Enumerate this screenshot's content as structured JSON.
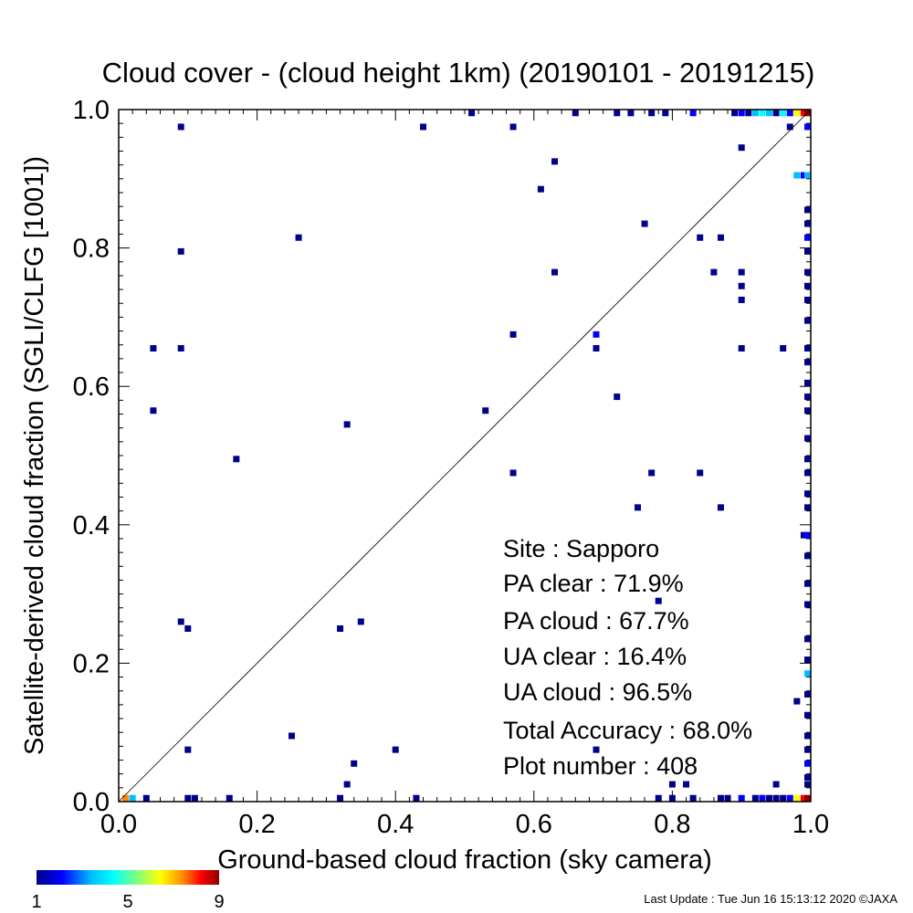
{
  "chart_data": {
    "type": "scatter",
    "title": "Cloud cover - (cloud height 1km)  (20190101 - 20191215)",
    "xlabel": "Ground-based cloud fraction (sky camera)",
    "ylabel": "Satellite-derived cloud fraction (SGLI/CLFG [1001])",
    "xlim": [
      0,
      1
    ],
    "ylim": [
      0,
      1
    ],
    "xticks": [
      "0.0",
      "0.2",
      "0.4",
      "0.6",
      "0.8",
      "1.0"
    ],
    "yticks": [
      "0.0",
      "0.2",
      "0.4",
      "0.6",
      "0.8",
      "1.0"
    ],
    "reference_line": "y = x",
    "color_scale": {
      "min_label": "1",
      "mid_label": "5",
      "max_label": "9",
      "colors": [
        "#00008b",
        "#0000ff",
        "#00bfff",
        "#00ffff",
        "#7fff7f",
        "#ffff00",
        "#ff8c00",
        "#ff0000",
        "#8b0000"
      ]
    },
    "points": [
      {
        "x": 0.09,
        "y": 0.975,
        "c": 1
      },
      {
        "x": 0.44,
        "y": 0.975,
        "c": 1
      },
      {
        "x": 0.57,
        "y": 0.975,
        "c": 1
      },
      {
        "x": 0.51,
        "y": 0.995,
        "c": 1
      },
      {
        "x": 0.66,
        "y": 0.995,
        "c": 1
      },
      {
        "x": 0.72,
        "y": 0.995,
        "c": 1
      },
      {
        "x": 0.74,
        "y": 0.995,
        "c": 1
      },
      {
        "x": 0.77,
        "y": 0.995,
        "c": 1
      },
      {
        "x": 0.79,
        "y": 0.995,
        "c": 1
      },
      {
        "x": 0.83,
        "y": 0.995,
        "c": 2
      },
      {
        "x": 0.89,
        "y": 0.995,
        "c": 1
      },
      {
        "x": 0.9,
        "y": 0.995,
        "c": 2
      },
      {
        "x": 0.91,
        "y": 0.995,
        "c": 1
      },
      {
        "x": 0.92,
        "y": 0.995,
        "c": 3
      },
      {
        "x": 0.93,
        "y": 0.995,
        "c": 4
      },
      {
        "x": 0.94,
        "y": 0.995,
        "c": 3
      },
      {
        "x": 0.95,
        "y": 0.995,
        "c": 1
      },
      {
        "x": 0.96,
        "y": 0.995,
        "c": 4
      },
      {
        "x": 0.97,
        "y": 0.995,
        "c": 2
      },
      {
        "x": 0.98,
        "y": 0.995,
        "c": 6
      },
      {
        "x": 0.99,
        "y": 0.995,
        "c": 8
      },
      {
        "x": 1.0,
        "y": 0.995,
        "c": 9
      },
      {
        "x": 0.97,
        "y": 0.975,
        "c": 1
      },
      {
        "x": 1.0,
        "y": 0.975,
        "c": 2
      },
      {
        "x": 0.9,
        "y": 0.945,
        "c": 1
      },
      {
        "x": 0.63,
        "y": 0.925,
        "c": 1
      },
      {
        "x": 0.98,
        "y": 0.905,
        "c": 3
      },
      {
        "x": 0.99,
        "y": 0.905,
        "c": 2
      },
      {
        "x": 1.0,
        "y": 0.905,
        "c": 3
      },
      {
        "x": 0.61,
        "y": 0.885,
        "c": 1
      },
      {
        "x": 1.0,
        "y": 0.855,
        "c": 1
      },
      {
        "x": 0.76,
        "y": 0.835,
        "c": 1
      },
      {
        "x": 1.0,
        "y": 0.835,
        "c": 1
      },
      {
        "x": 0.09,
        "y": 0.795,
        "c": 1
      },
      {
        "x": 0.26,
        "y": 0.815,
        "c": 1
      },
      {
        "x": 0.84,
        "y": 0.815,
        "c": 1
      },
      {
        "x": 0.87,
        "y": 0.815,
        "c": 1
      },
      {
        "x": 1.0,
        "y": 0.815,
        "c": 2
      },
      {
        "x": 1.0,
        "y": 0.795,
        "c": 1
      },
      {
        "x": 0.63,
        "y": 0.765,
        "c": 1
      },
      {
        "x": 0.86,
        "y": 0.765,
        "c": 1
      },
      {
        "x": 0.9,
        "y": 0.765,
        "c": 1
      },
      {
        "x": 1.0,
        "y": 0.765,
        "c": 1
      },
      {
        "x": 0.9,
        "y": 0.745,
        "c": 1
      },
      {
        "x": 1.0,
        "y": 0.745,
        "c": 1
      },
      {
        "x": 0.9,
        "y": 0.725,
        "c": 1
      },
      {
        "x": 1.0,
        "y": 0.725,
        "c": 1
      },
      {
        "x": 1.0,
        "y": 0.695,
        "c": 1
      },
      {
        "x": 0.57,
        "y": 0.675,
        "c": 1
      },
      {
        "x": 0.69,
        "y": 0.675,
        "c": 2
      },
      {
        "x": 0.05,
        "y": 0.655,
        "c": 1
      },
      {
        "x": 0.09,
        "y": 0.655,
        "c": 1
      },
      {
        "x": 0.69,
        "y": 0.655,
        "c": 1
      },
      {
        "x": 0.9,
        "y": 0.655,
        "c": 1
      },
      {
        "x": 0.96,
        "y": 0.655,
        "c": 1
      },
      {
        "x": 1.0,
        "y": 0.655,
        "c": 1
      },
      {
        "x": 1.0,
        "y": 0.635,
        "c": 1
      },
      {
        "x": 1.0,
        "y": 0.605,
        "c": 1
      },
      {
        "x": 0.72,
        "y": 0.585,
        "c": 1
      },
      {
        "x": 1.0,
        "y": 0.585,
        "c": 1
      },
      {
        "x": 0.05,
        "y": 0.565,
        "c": 1
      },
      {
        "x": 0.53,
        "y": 0.565,
        "c": 1
      },
      {
        "x": 1.0,
        "y": 0.565,
        "c": 1
      },
      {
        "x": 0.33,
        "y": 0.545,
        "c": 1
      },
      {
        "x": 1.0,
        "y": 0.525,
        "c": 1
      },
      {
        "x": 0.17,
        "y": 0.495,
        "c": 1
      },
      {
        "x": 1.0,
        "y": 0.495,
        "c": 1
      },
      {
        "x": 0.57,
        "y": 0.475,
        "c": 1
      },
      {
        "x": 0.77,
        "y": 0.475,
        "c": 1
      },
      {
        "x": 0.84,
        "y": 0.475,
        "c": 1
      },
      {
        "x": 1.0,
        "y": 0.475,
        "c": 1
      },
      {
        "x": 1.0,
        "y": 0.445,
        "c": 1
      },
      {
        "x": 0.75,
        "y": 0.425,
        "c": 1
      },
      {
        "x": 0.87,
        "y": 0.425,
        "c": 1
      },
      {
        "x": 1.0,
        "y": 0.425,
        "c": 1
      },
      {
        "x": 0.99,
        "y": 0.385,
        "c": 1
      },
      {
        "x": 1.0,
        "y": 0.385,
        "c": 2
      },
      {
        "x": 1.0,
        "y": 0.355,
        "c": 1
      },
      {
        "x": 1.0,
        "y": 0.315,
        "c": 1
      },
      {
        "x": 0.78,
        "y": 0.29,
        "c": 1
      },
      {
        "x": 1.0,
        "y": 0.285,
        "c": 1
      },
      {
        "x": 0.09,
        "y": 0.26,
        "c": 1
      },
      {
        "x": 0.35,
        "y": 0.26,
        "c": 1
      },
      {
        "x": 0.1,
        "y": 0.25,
        "c": 1
      },
      {
        "x": 0.32,
        "y": 0.25,
        "c": 1
      },
      {
        "x": 1.0,
        "y": 0.235,
        "c": 1
      },
      {
        "x": 1.0,
        "y": 0.205,
        "c": 1
      },
      {
        "x": 1.0,
        "y": 0.185,
        "c": 3
      },
      {
        "x": 1.0,
        "y": 0.155,
        "c": 1
      },
      {
        "x": 0.98,
        "y": 0.145,
        "c": 1
      },
      {
        "x": 1.0,
        "y": 0.125,
        "c": 1
      },
      {
        "x": 0.25,
        "y": 0.095,
        "c": 1
      },
      {
        "x": 1.0,
        "y": 0.095,
        "c": 1
      },
      {
        "x": 0.1,
        "y": 0.075,
        "c": 1
      },
      {
        "x": 0.4,
        "y": 0.075,
        "c": 1
      },
      {
        "x": 0.69,
        "y": 0.075,
        "c": 1
      },
      {
        "x": 1.0,
        "y": 0.075,
        "c": 1
      },
      {
        "x": 0.34,
        "y": 0.055,
        "c": 1
      },
      {
        "x": 1.0,
        "y": 0.055,
        "c": 2
      },
      {
        "x": 1.0,
        "y": 0.035,
        "c": 1
      },
      {
        "x": 0.33,
        "y": 0.025,
        "c": 1
      },
      {
        "x": 0.8,
        "y": 0.025,
        "c": 1
      },
      {
        "x": 0.82,
        "y": 0.025,
        "c": 1
      },
      {
        "x": 0.95,
        "y": 0.025,
        "c": 1
      },
      {
        "x": 1.0,
        "y": 0.025,
        "c": 1
      },
      {
        "x": 0.01,
        "y": 0.005,
        "c": 7
      },
      {
        "x": 0.02,
        "y": 0.005,
        "c": 3
      },
      {
        "x": 0.04,
        "y": 0.005,
        "c": 1
      },
      {
        "x": 0.1,
        "y": 0.005,
        "c": 1
      },
      {
        "x": 0.11,
        "y": 0.005,
        "c": 1
      },
      {
        "x": 0.16,
        "y": 0.005,
        "c": 1
      },
      {
        "x": 0.32,
        "y": 0.005,
        "c": 1
      },
      {
        "x": 0.43,
        "y": 0.005,
        "c": 1
      },
      {
        "x": 0.78,
        "y": 0.005,
        "c": 1
      },
      {
        "x": 0.8,
        "y": 0.005,
        "c": 1
      },
      {
        "x": 0.83,
        "y": 0.005,
        "c": 1
      },
      {
        "x": 0.87,
        "y": 0.005,
        "c": 1
      },
      {
        "x": 0.88,
        "y": 0.005,
        "c": 1
      },
      {
        "x": 0.9,
        "y": 0.005,
        "c": 2
      },
      {
        "x": 0.92,
        "y": 0.005,
        "c": 1
      },
      {
        "x": 0.93,
        "y": 0.005,
        "c": 2
      },
      {
        "x": 0.94,
        "y": 0.005,
        "c": 1
      },
      {
        "x": 0.95,
        "y": 0.005,
        "c": 1
      },
      {
        "x": 0.96,
        "y": 0.005,
        "c": 1
      },
      {
        "x": 0.97,
        "y": 0.005,
        "c": 2
      },
      {
        "x": 0.98,
        "y": 0.005,
        "c": 6
      },
      {
        "x": 0.99,
        "y": 0.005,
        "c": 8
      },
      {
        "x": 1.0,
        "y": 0.005,
        "c": 9
      }
    ]
  },
  "stats": {
    "site": "Site : Sapporo",
    "pa_clear": "PA clear :  71.9%",
    "pa_cloud": "PA cloud :  67.7%",
    "ua_clear": "UA clear :  16.4%",
    "ua_cloud": "UA cloud :  96.5%",
    "total_accuracy": "Total Accuracy :  68.0%",
    "plot_number": "Plot number :       408"
  },
  "footer": "Last Update : Tue Jun 16 15:13:12 2020  ©JAXA"
}
